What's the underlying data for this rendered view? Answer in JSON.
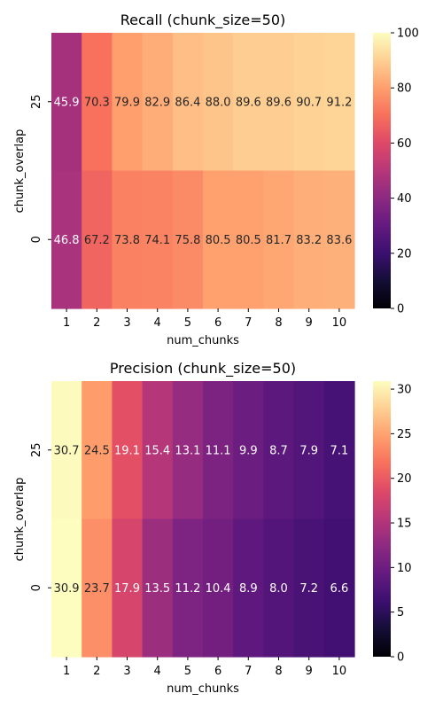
{
  "chart_data": [
    {
      "type": "heatmap",
      "title": "Recall (chunk_size=50)",
      "xlabel": "num_chunks",
      "ylabel": "chunk_overlap",
      "x": [
        "1",
        "2",
        "3",
        "4",
        "5",
        "6",
        "7",
        "8",
        "9",
        "10"
      ],
      "y": [
        "25",
        "0"
      ],
      "values": [
        [
          45.9,
          70.3,
          79.9,
          82.9,
          86.4,
          88.0,
          89.6,
          89.6,
          90.7,
          91.2
        ],
        [
          46.8,
          67.2,
          73.8,
          74.1,
          75.8,
          80.5,
          80.5,
          81.7,
          83.2,
          83.6
        ]
      ],
      "labels": [
        [
          "45.9",
          "70.3",
          "79.9",
          "82.9",
          "86.4",
          "88.0",
          "89.6",
          "89.6",
          "90.7",
          "91.2"
        ],
        [
          "46.8",
          "67.2",
          "73.8",
          "74.1",
          "75.8",
          "80.5",
          "80.5",
          "81.7",
          "83.2",
          "83.6"
        ]
      ],
      "colorbar": {
        "min": 0,
        "max": 100,
        "ticks": [
          "0",
          "20",
          "40",
          "60",
          "80",
          "100"
        ]
      },
      "colormap": "magma"
    },
    {
      "type": "heatmap",
      "title": "Precision (chunk_size=50)",
      "xlabel": "num_chunks",
      "ylabel": "chunk_overlap",
      "x": [
        "1",
        "2",
        "3",
        "4",
        "5",
        "6",
        "7",
        "8",
        "9",
        "10"
      ],
      "y": [
        "25",
        "0"
      ],
      "values": [
        [
          30.7,
          24.5,
          19.1,
          15.4,
          13.1,
          11.1,
          9.9,
          8.7,
          7.9,
          7.1
        ],
        [
          30.9,
          23.7,
          17.9,
          13.5,
          11.2,
          10.4,
          8.9,
          8.0,
          7.2,
          6.6
        ]
      ],
      "labels": [
        [
          "30.7",
          "24.5",
          "19.1",
          "15.4",
          "13.1",
          "11.1",
          "9.9",
          "8.7",
          "7.9",
          "7.1"
        ],
        [
          "30.9",
          "23.7",
          "17.9",
          "13.5",
          "11.2",
          "10.4",
          "8.9",
          "8.0",
          "7.2",
          "6.6"
        ]
      ],
      "colorbar": {
        "min": 0,
        "max": 30.9,
        "ticks": [
          "0",
          "5",
          "10",
          "15",
          "20",
          "25",
          "30"
        ]
      },
      "colormap": "magma"
    }
  ]
}
